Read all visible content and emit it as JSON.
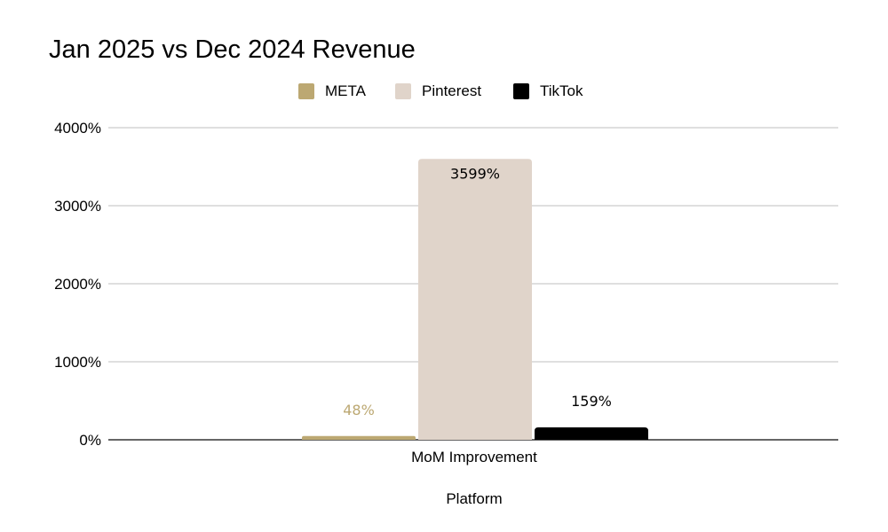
{
  "chart_data": {
    "type": "bar",
    "title": "Jan 2025 vs Dec 2024 Revenue",
    "categories": [
      "MoM Improvement"
    ],
    "series": [
      {
        "name": "META",
        "values": [
          48
        ],
        "color": "#bca872",
        "label": "48%",
        "label_color": "#bca872"
      },
      {
        "name": "Pinterest",
        "values": [
          3599
        ],
        "color": "#e0d4ca",
        "label": "3599%",
        "label_color": "#000000"
      },
      {
        "name": "TikTok",
        "values": [
          159
        ],
        "color": "#000000",
        "label": "159%",
        "label_color": "#000000"
      }
    ],
    "xlabel": "Platform",
    "ylabel": "",
    "ylim": [
      0,
      4000
    ],
    "yticks": [
      0,
      1000,
      2000,
      3000,
      4000
    ],
    "ytick_labels": [
      "0%",
      "1000%",
      "2000%",
      "3000%",
      "4000%"
    ],
    "grid": true,
    "legend_position": "top-center"
  }
}
